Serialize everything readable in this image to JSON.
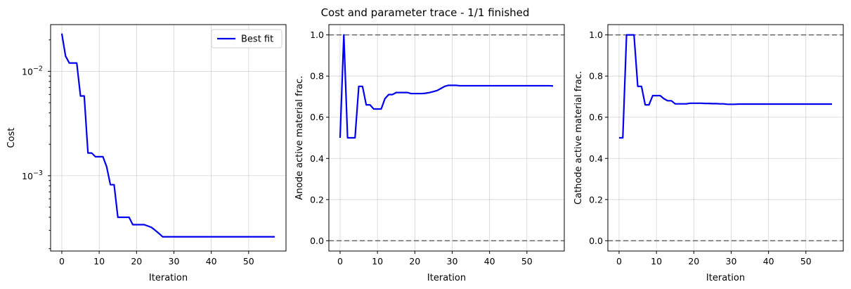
{
  "title": "Cost and parameter trace - 1/1 finished",
  "colors": {
    "series": "#0000ee",
    "bound": "#666666"
  },
  "chart_data": [
    {
      "type": "line",
      "title": "",
      "xlabel": "Iteration",
      "ylabel": "Cost",
      "yscale": "log",
      "xlim": [
        -3,
        60
      ],
      "ylim": [
        0.00019,
        0.028
      ],
      "xticks": [
        0,
        10,
        20,
        30,
        40,
        50
      ],
      "yticks": [
        {
          "value": 0.01,
          "base": "10",
          "exp": "−2"
        },
        {
          "value": 0.001,
          "base": "10",
          "exp": "−3"
        }
      ],
      "grid": true,
      "legend": "top-right",
      "series": [
        {
          "name": "Best fit",
          "x": [
            0,
            1,
            2,
            3,
            4,
            5,
            6,
            7,
            8,
            9,
            10,
            11,
            12,
            13,
            14,
            15,
            16,
            17,
            18,
            19,
            20,
            21,
            22,
            23,
            24,
            25,
            26,
            27,
            28,
            29,
            30,
            31,
            32,
            33,
            34,
            35,
            36,
            37,
            38,
            39,
            40,
            41,
            42,
            43,
            44,
            45,
            46,
            47,
            48,
            49,
            50,
            51,
            52,
            53,
            54,
            55,
            56,
            57
          ],
          "y": [
            0.023,
            0.014,
            0.012,
            0.012,
            0.012,
            0.0058,
            0.0058,
            0.00165,
            0.00165,
            0.00152,
            0.00152,
            0.00152,
            0.00122,
            0.00082,
            0.00082,
            0.0004,
            0.0004,
            0.0004,
            0.0004,
            0.00034,
            0.00034,
            0.00034,
            0.00034,
            0.00033,
            0.00032,
            0.0003,
            0.00028,
            0.00026,
            0.00026,
            0.00026,
            0.00026,
            0.00026,
            0.00026,
            0.00026,
            0.00026,
            0.00026,
            0.00026,
            0.00026,
            0.00026,
            0.00026,
            0.00026,
            0.00026,
            0.00026,
            0.00026,
            0.00026,
            0.00026,
            0.00026,
            0.00026,
            0.00026,
            0.00026,
            0.00026,
            0.00026,
            0.00026,
            0.00026,
            0.00026,
            0.00026,
            0.00026,
            0.00026
          ]
        }
      ]
    },
    {
      "type": "line",
      "title": "",
      "xlabel": "Iteration",
      "ylabel": "Anode active material frac.",
      "yscale": "linear",
      "xlim": [
        -3,
        60
      ],
      "ylim": [
        -0.05,
        1.05
      ],
      "xticks": [
        0,
        10,
        20,
        30,
        40,
        50
      ],
      "yticks": [
        0.0,
        0.2,
        0.4,
        0.6,
        0.8,
        1.0
      ],
      "grid": true,
      "bounds": [
        0.0,
        1.0
      ],
      "series": [
        {
          "x": [
            0,
            1,
            2,
            3,
            4,
            5,
            6,
            7,
            8,
            9,
            10,
            11,
            12,
            13,
            14,
            15,
            16,
            17,
            18,
            19,
            20,
            21,
            22,
            23,
            24,
            25,
            26,
            27,
            28,
            29,
            30,
            31,
            32,
            33,
            34,
            35,
            36,
            37,
            38,
            39,
            40,
            41,
            42,
            43,
            44,
            45,
            46,
            47,
            48,
            49,
            50,
            51,
            52,
            53,
            54,
            55,
            56,
            57
          ],
          "y": [
            0.5,
            1.0,
            0.5,
            0.5,
            0.5,
            0.75,
            0.75,
            0.66,
            0.66,
            0.64,
            0.64,
            0.64,
            0.69,
            0.71,
            0.71,
            0.72,
            0.72,
            0.72,
            0.72,
            0.715,
            0.715,
            0.715,
            0.715,
            0.717,
            0.72,
            0.725,
            0.73,
            0.74,
            0.75,
            0.755,
            0.755,
            0.755,
            0.753,
            0.753,
            0.753,
            0.753,
            0.753,
            0.753,
            0.753,
            0.753,
            0.753,
            0.753,
            0.753,
            0.753,
            0.753,
            0.753,
            0.753,
            0.753,
            0.753,
            0.753,
            0.753,
            0.753,
            0.753,
            0.753,
            0.753,
            0.753,
            0.753,
            0.752
          ]
        }
      ]
    },
    {
      "type": "line",
      "title": "",
      "xlabel": "Iteration",
      "ylabel": "Cathode active material frac.",
      "yscale": "linear",
      "xlim": [
        -3,
        60
      ],
      "ylim": [
        -0.05,
        1.05
      ],
      "xticks": [
        0,
        10,
        20,
        30,
        40,
        50
      ],
      "yticks": [
        0.0,
        0.2,
        0.4,
        0.6,
        0.8,
        1.0
      ],
      "grid": true,
      "bounds": [
        0.0,
        1.0
      ],
      "series": [
        {
          "x": [
            0,
            1,
            2,
            3,
            4,
            5,
            6,
            7,
            8,
            9,
            10,
            11,
            12,
            13,
            14,
            15,
            16,
            17,
            18,
            19,
            20,
            21,
            22,
            23,
            24,
            25,
            26,
            27,
            28,
            29,
            30,
            31,
            32,
            33,
            34,
            35,
            36,
            37,
            38,
            39,
            40,
            41,
            42,
            43,
            44,
            45,
            46,
            47,
            48,
            49,
            50,
            51,
            52,
            53,
            54,
            55,
            56,
            57
          ],
          "y": [
            0.5,
            0.5,
            1.0,
            1.0,
            1.0,
            0.75,
            0.75,
            0.66,
            0.66,
            0.705,
            0.705,
            0.705,
            0.69,
            0.68,
            0.68,
            0.665,
            0.665,
            0.665,
            0.665,
            0.668,
            0.668,
            0.668,
            0.668,
            0.667,
            0.667,
            0.666,
            0.666,
            0.665,
            0.665,
            0.663,
            0.663,
            0.663,
            0.664,
            0.664,
            0.664,
            0.664,
            0.664,
            0.664,
            0.664,
            0.664,
            0.664,
            0.664,
            0.664,
            0.664,
            0.664,
            0.664,
            0.664,
            0.664,
            0.664,
            0.664,
            0.664,
            0.664,
            0.664,
            0.664,
            0.664,
            0.664,
            0.664,
            0.664
          ]
        }
      ]
    }
  ]
}
